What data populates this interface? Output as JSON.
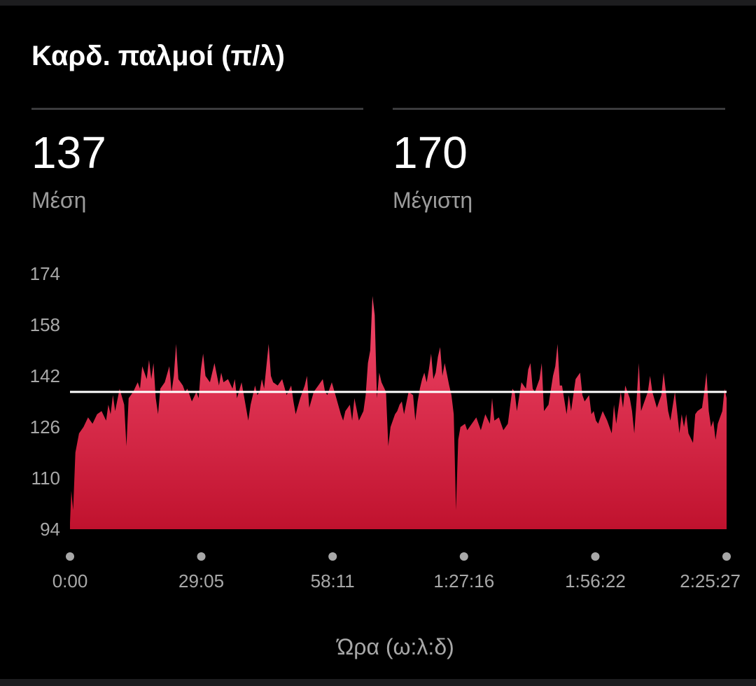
{
  "header": {
    "title": "Καρδ. παλμοί (π/λ)"
  },
  "stats": [
    {
      "value": "137",
      "label": "Μέση"
    },
    {
      "value": "170",
      "label": "Μέγιστη"
    }
  ],
  "colors": {
    "background": "#000000",
    "fill_top": "#f2486a",
    "fill_bottom": "#c0122e",
    "average_line": "#ffffff",
    "tick_text": "#a8a8a8"
  },
  "chart_data": {
    "type": "area",
    "title": "Καρδ. παλμοί (π/λ)",
    "xlabel": "Ώρα (ω:λ:δ)",
    "ylabel": "",
    "x_unit": "minutes",
    "x_range_minutes": [
      0,
      145.45
    ],
    "y_ticks": [
      94,
      110,
      126,
      142,
      158,
      174
    ],
    "ylim": [
      94,
      174
    ],
    "x_ticks": [
      {
        "minute": 0,
        "label": "0:00"
      },
      {
        "minute": 29.08,
        "label": "29:05"
      },
      {
        "minute": 58.18,
        "label": "58:11"
      },
      {
        "minute": 87.27,
        "label": "1:27:16"
      },
      {
        "minute": 116.37,
        "label": "1:56:22"
      },
      {
        "minute": 145.45,
        "label": "2:25:27"
      }
    ],
    "average": 137,
    "max": 170,
    "grid": false,
    "series": [
      {
        "points": [
          [
            0,
            96
          ],
          [
            0.3,
            106
          ],
          [
            0.7,
            100
          ],
          [
            1.2,
            118
          ],
          [
            2,
            124
          ],
          [
            3,
            126
          ],
          [
            4,
            129
          ],
          [
            5,
            127
          ],
          [
            6,
            130
          ],
          [
            7,
            131
          ],
          [
            8,
            128
          ],
          [
            8.5,
            133
          ],
          [
            9,
            130
          ],
          [
            9.5,
            136
          ],
          [
            10,
            131
          ],
          [
            11,
            138
          ],
          [
            12,
            133
          ],
          [
            12.5,
            120
          ],
          [
            13,
            135
          ],
          [
            14,
            137
          ],
          [
            15,
            140
          ],
          [
            15.5,
            138
          ],
          [
            16,
            145
          ],
          [
            17,
            141
          ],
          [
            17.5,
            147
          ],
          [
            18,
            141
          ],
          [
            18.5,
            146
          ],
          [
            19,
            135
          ],
          [
            19.5,
            130
          ],
          [
            20,
            138
          ],
          [
            21,
            140
          ],
          [
            22,
            145
          ],
          [
            22.5,
            137
          ],
          [
            23,
            142
          ],
          [
            23.5,
            152
          ],
          [
            24,
            141
          ],
          [
            25,
            139
          ],
          [
            25.5,
            137
          ],
          [
            26,
            138
          ],
          [
            27,
            134
          ],
          [
            28,
            137
          ],
          [
            28.5,
            135
          ],
          [
            29,
            144
          ],
          [
            29.5,
            149
          ],
          [
            30,
            142
          ],
          [
            31,
            140
          ],
          [
            32,
            146
          ],
          [
            33,
            139
          ],
          [
            33.5,
            143
          ],
          [
            34,
            140
          ],
          [
            35,
            141
          ],
          [
            36,
            138
          ],
          [
            36.5,
            141
          ],
          [
            37,
            135
          ],
          [
            38,
            140
          ],
          [
            39,
            132
          ],
          [
            39.5,
            128
          ],
          [
            40,
            133
          ],
          [
            41,
            139
          ],
          [
            41.5,
            136
          ],
          [
            42,
            137
          ],
          [
            42.5,
            141
          ],
          [
            43,
            138
          ],
          [
            44,
            152
          ],
          [
            44.5,
            142
          ],
          [
            45,
            140
          ],
          [
            46,
            139
          ],
          [
            47,
            141
          ],
          [
            48,
            136
          ],
          [
            49,
            139
          ],
          [
            49.5,
            134
          ],
          [
            50,
            130
          ],
          [
            51,
            135
          ],
          [
            52,
            139
          ],
          [
            52.5,
            142
          ],
          [
            53,
            132
          ],
          [
            54,
            137
          ],
          [
            55,
            139
          ],
          [
            56,
            141
          ],
          [
            56.5,
            137
          ],
          [
            57,
            136
          ],
          [
            58,
            140
          ],
          [
            59,
            135
          ],
          [
            60,
            130
          ],
          [
            60.5,
            128
          ],
          [
            61,
            131
          ],
          [
            62,
            133
          ],
          [
            62.5,
            128
          ],
          [
            63,
            135
          ],
          [
            64,
            128
          ],
          [
            65,
            131
          ],
          [
            65.5,
            136
          ],
          [
            66,
            146
          ],
          [
            66.5,
            150
          ],
          [
            67,
            167
          ],
          [
            67.5,
            161
          ],
          [
            68,
            135
          ],
          [
            68.5,
            143
          ],
          [
            69,
            140
          ],
          [
            70,
            137
          ],
          [
            70.5,
            120
          ],
          [
            71,
            126
          ],
          [
            72,
            130
          ],
          [
            72.5,
            131
          ],
          [
            73,
            133
          ],
          [
            73.5,
            134
          ],
          [
            74,
            130
          ],
          [
            75,
            137
          ],
          [
            76,
            136
          ],
          [
            76.5,
            128
          ],
          [
            77,
            134
          ],
          [
            77.5,
            138
          ],
          [
            78,
            141
          ],
          [
            78.5,
            143
          ],
          [
            79,
            140
          ],
          [
            79.5,
            144
          ],
          [
            80,
            149
          ],
          [
            80.5,
            141
          ],
          [
            81,
            143
          ],
          [
            81.5,
            148
          ],
          [
            82,
            151
          ],
          [
            82.5,
            142
          ],
          [
            83,
            146
          ],
          [
            84,
            139
          ],
          [
            84.5,
            136
          ],
          [
            85,
            130
          ],
          [
            85.5,
            100
          ],
          [
            86,
            122
          ],
          [
            86.5,
            126
          ],
          [
            87.5,
            127
          ]
        ]
      }
    ]
  },
  "chart_tail_points": [
    [
      88,
      125
    ],
    [
      89,
      127
    ],
    [
      90,
      129
    ],
    [
      91,
      125
    ],
    [
      92,
      130
    ],
    [
      93,
      127
    ],
    [
      93.5,
      135
    ],
    [
      94,
      128
    ],
    [
      95,
      129
    ],
    [
      96,
      125
    ],
    [
      97,
      127
    ],
    [
      98,
      138
    ],
    [
      98.5,
      137
    ],
    [
      99,
      131
    ],
    [
      100,
      140
    ],
    [
      101,
      138
    ],
    [
      101.5,
      144
    ],
    [
      102,
      146
    ],
    [
      102.5,
      138
    ],
    [
      103,
      137
    ],
    [
      104,
      141
    ],
    [
      104.5,
      146
    ],
    [
      105,
      131
    ],
    [
      106,
      133
    ],
    [
      107,
      142
    ],
    [
      107.5,
      145
    ],
    [
      108,
      152
    ],
    [
      108.5,
      139
    ],
    [
      109,
      139
    ],
    [
      110,
      130
    ],
    [
      110.5,
      136
    ],
    [
      111,
      131
    ],
    [
      112,
      141
    ],
    [
      113,
      143
    ],
    [
      113.5,
      136
    ],
    [
      114,
      134
    ],
    [
      115,
      136
    ],
    [
      115.5,
      130
    ],
    [
      116,
      131
    ],
    [
      116.5,
      128
    ],
    [
      117,
      127
    ],
    [
      118,
      131
    ],
    [
      119,
      128
    ],
    [
      120,
      124
    ],
    [
      120.5,
      133
    ],
    [
      121,
      127
    ],
    [
      122,
      137
    ],
    [
      122.5,
      132
    ],
    [
      123,
      139
    ],
    [
      124,
      135
    ],
    [
      124.5,
      131
    ],
    [
      125,
      124
    ],
    [
      125.5,
      134
    ],
    [
      126,
      146
    ],
    [
      126.5,
      131
    ],
    [
      127,
      133
    ],
    [
      128,
      137
    ],
    [
      128.5,
      142
    ],
    [
      129,
      137
    ],
    [
      130,
      132
    ],
    [
      130.5,
      134
    ],
    [
      131,
      136
    ],
    [
      131.5,
      143
    ],
    [
      132,
      137
    ],
    [
      132.5,
      131
    ],
    [
      133,
      128
    ],
    [
      134,
      137
    ],
    [
      135,
      124
    ],
    [
      135.5,
      130
    ],
    [
      136,
      126
    ],
    [
      136.5,
      130
    ],
    [
      137,
      124
    ],
    [
      138,
      121
    ],
    [
      138.5,
      130
    ],
    [
      139,
      131
    ],
    [
      140,
      132
    ],
    [
      140.5,
      137
    ],
    [
      141,
      143
    ],
    [
      141.5,
      131
    ],
    [
      142,
      126
    ],
    [
      142.5,
      128
    ],
    [
      143,
      122
    ],
    [
      143.5,
      127
    ],
    [
      144,
      129
    ],
    [
      144.5,
      131
    ],
    [
      145,
      138
    ],
    [
      145.45,
      135
    ]
  ]
}
